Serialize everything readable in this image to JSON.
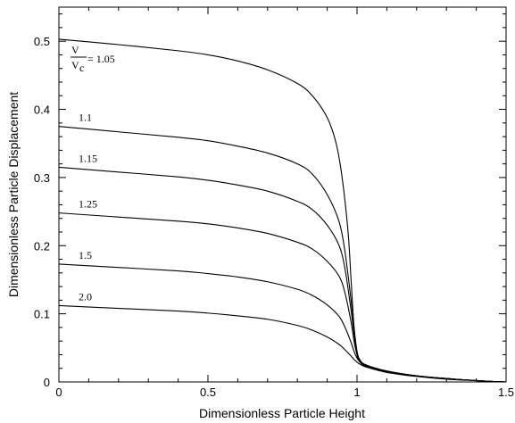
{
  "chart_data": {
    "type": "line",
    "xlabel": "Dimensionless Particle Height",
    "ylabel": "Dimensionless Particle Displacement",
    "xlim": [
      0,
      1.5
    ],
    "ylim": [
      0,
      0.55
    ],
    "x_ticks": [
      "0",
      "0.5",
      "1",
      "1.5"
    ],
    "y_ticks": [
      "0",
      "0.1",
      "0.2",
      "0.3",
      "0.4",
      "0.5"
    ],
    "x_tick_values": [
      0,
      0.5,
      1,
      1.5
    ],
    "y_tick_values": [
      0,
      0.1,
      0.2,
      0.3,
      0.4,
      0.5
    ],
    "grid": false,
    "legend": "none",
    "ratio_label": {
      "numerator": "V",
      "denominator": "V",
      "subscript": "c",
      "equals": "= 1.05"
    },
    "series": [
      {
        "name": "1.05",
        "x": [
          0,
          0.2,
          0.4,
          0.5,
          0.6,
          0.7,
          0.8,
          0.85,
          0.9,
          0.93,
          0.95,
          0.97,
          0.98,
          0.99,
          1.0,
          1.01,
          1.03,
          1.1,
          1.2,
          1.3,
          1.4,
          1.45,
          1.5
        ],
        "y": [
          0.503,
          0.495,
          0.486,
          0.48,
          0.471,
          0.458,
          0.438,
          0.42,
          0.388,
          0.35,
          0.3,
          0.22,
          0.15,
          0.08,
          0.04,
          0.03,
          0.024,
          0.016,
          0.009,
          0.005,
          0.002,
          0.0008,
          0.0
        ]
      },
      {
        "name": "1.1",
        "x": [
          0,
          0.2,
          0.4,
          0.5,
          0.6,
          0.7,
          0.8,
          0.85,
          0.9,
          0.94,
          0.96,
          0.98,
          0.99,
          1.0,
          1.01,
          1.03,
          1.1,
          1.2,
          1.3,
          1.4,
          1.45,
          1.5
        ],
        "y": [
          0.375,
          0.367,
          0.359,
          0.354,
          0.346,
          0.336,
          0.32,
          0.305,
          0.275,
          0.235,
          0.19,
          0.12,
          0.08,
          0.045,
          0.032,
          0.025,
          0.016,
          0.009,
          0.005,
          0.002,
          0.0008,
          0.0
        ]
      },
      {
        "name": "1.15",
        "x": [
          0,
          0.2,
          0.4,
          0.5,
          0.6,
          0.7,
          0.8,
          0.85,
          0.9,
          0.94,
          0.96,
          0.98,
          0.99,
          1.0,
          1.01,
          1.03,
          1.1,
          1.2,
          1.3,
          1.4,
          1.45,
          1.5
        ],
        "y": [
          0.315,
          0.308,
          0.301,
          0.296,
          0.289,
          0.28,
          0.265,
          0.253,
          0.23,
          0.2,
          0.165,
          0.105,
          0.07,
          0.043,
          0.032,
          0.025,
          0.016,
          0.009,
          0.005,
          0.002,
          0.0008,
          0.0
        ]
      },
      {
        "name": "1.25",
        "x": [
          0,
          0.2,
          0.4,
          0.5,
          0.6,
          0.7,
          0.8,
          0.85,
          0.9,
          0.94,
          0.96,
          0.98,
          0.99,
          1.0,
          1.01,
          1.03,
          1.1,
          1.2,
          1.3,
          1.4,
          1.45,
          1.5
        ],
        "y": [
          0.248,
          0.242,
          0.236,
          0.232,
          0.226,
          0.218,
          0.205,
          0.195,
          0.177,
          0.155,
          0.13,
          0.088,
          0.06,
          0.04,
          0.031,
          0.024,
          0.015,
          0.009,
          0.005,
          0.002,
          0.0008,
          0.0
        ]
      },
      {
        "name": "1.5",
        "x": [
          0,
          0.2,
          0.4,
          0.5,
          0.6,
          0.7,
          0.8,
          0.85,
          0.9,
          0.94,
          0.96,
          0.98,
          0.99,
          1.0,
          1.01,
          1.03,
          1.1,
          1.2,
          1.3,
          1.4,
          1.45,
          1.5
        ],
        "y": [
          0.173,
          0.168,
          0.163,
          0.159,
          0.154,
          0.147,
          0.136,
          0.127,
          0.113,
          0.096,
          0.08,
          0.058,
          0.045,
          0.035,
          0.029,
          0.023,
          0.015,
          0.009,
          0.005,
          0.002,
          0.0008,
          0.0
        ]
      },
      {
        "name": "2.0",
        "x": [
          0,
          0.2,
          0.4,
          0.5,
          0.6,
          0.7,
          0.8,
          0.85,
          0.9,
          0.94,
          0.96,
          0.98,
          0.99,
          1.0,
          1.01,
          1.03,
          1.1,
          1.2,
          1.3,
          1.4,
          1.45,
          1.5
        ],
        "y": [
          0.112,
          0.108,
          0.104,
          0.101,
          0.097,
          0.092,
          0.083,
          0.076,
          0.066,
          0.055,
          0.047,
          0.038,
          0.033,
          0.029,
          0.026,
          0.022,
          0.014,
          0.008,
          0.004,
          0.002,
          0.0008,
          0.0
        ]
      }
    ]
  }
}
